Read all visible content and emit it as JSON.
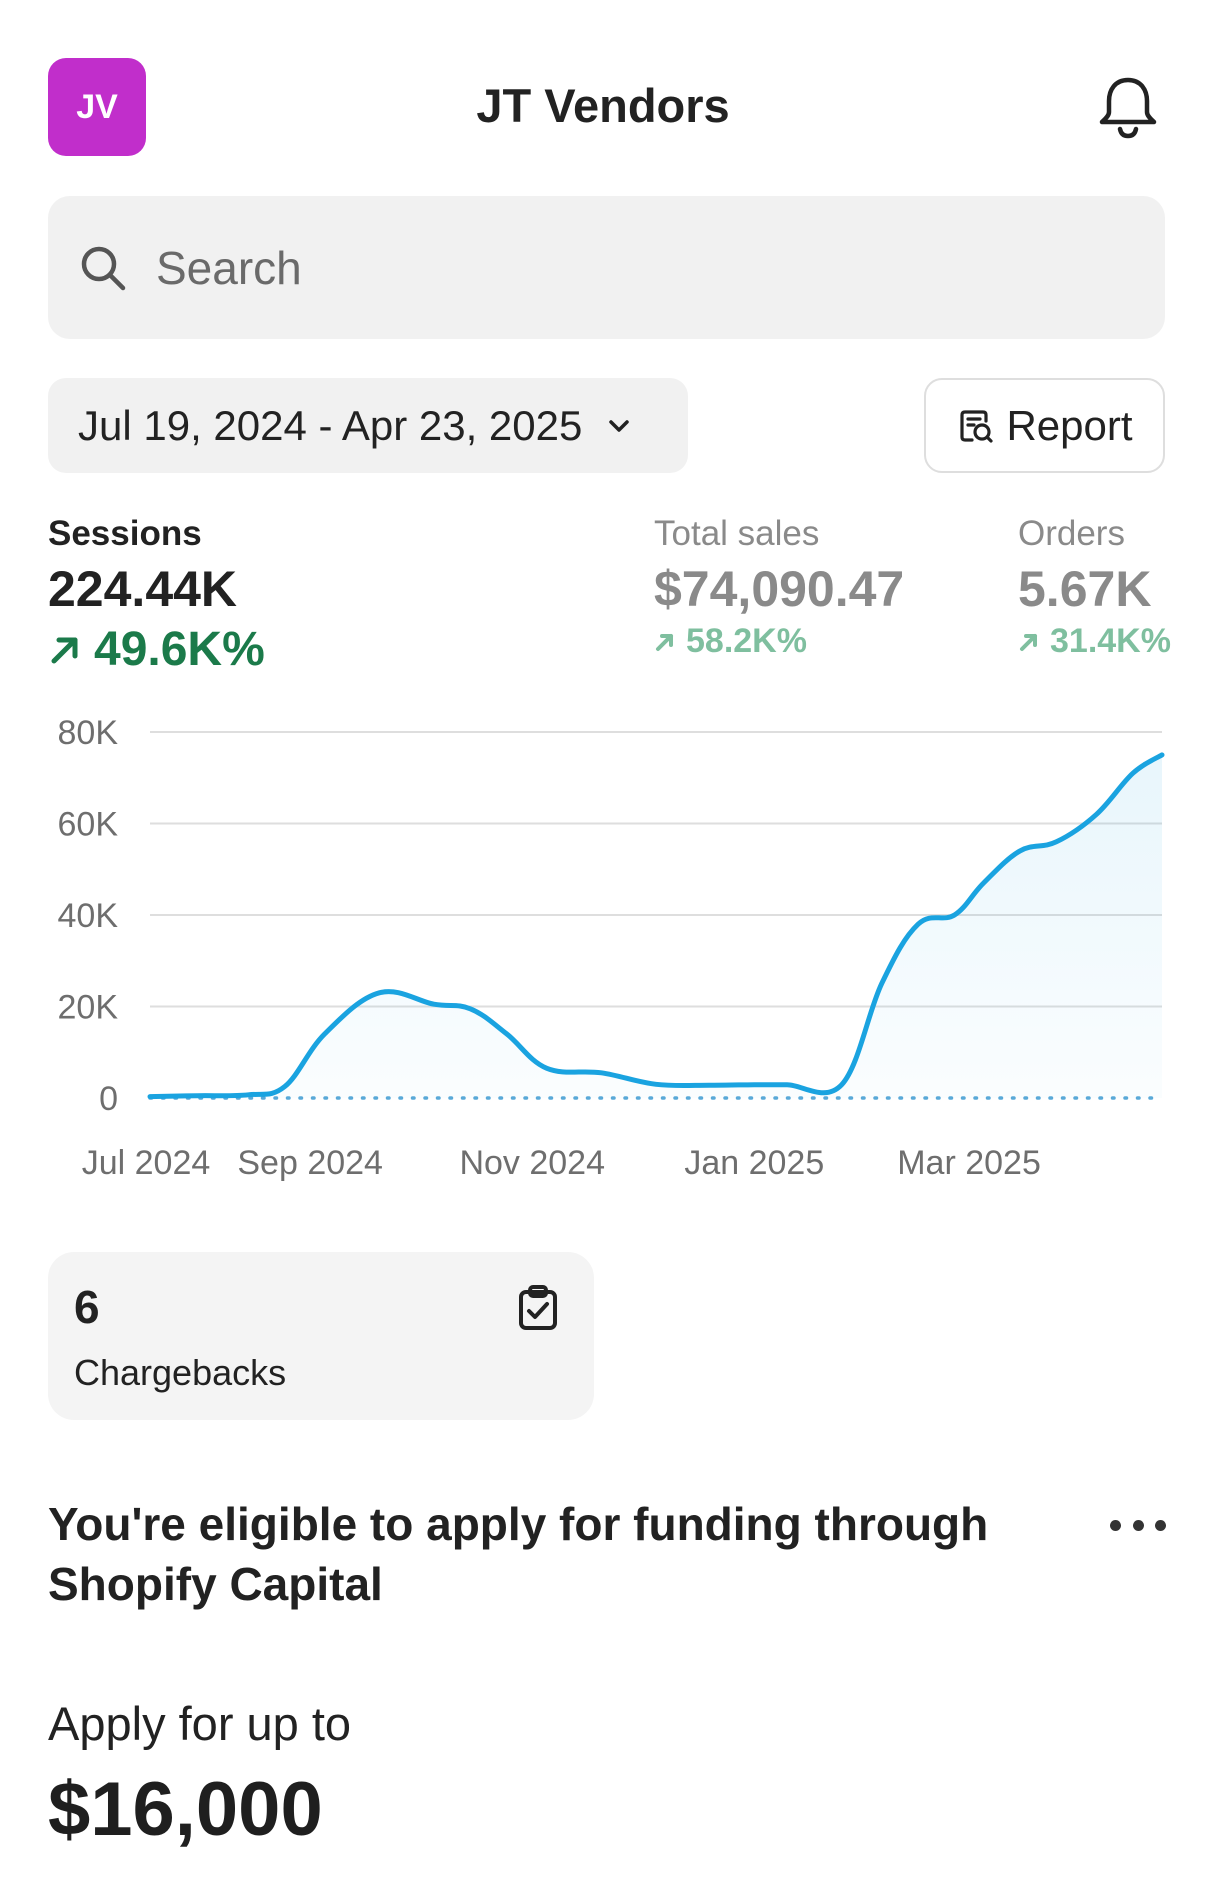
{
  "header": {
    "avatar_initials": "JV",
    "avatar_color": "#c12ecb",
    "store_name": "JT Vendors",
    "notification_icon": "bell-icon"
  },
  "search": {
    "placeholder": "Search",
    "icon": "search-icon"
  },
  "filters": {
    "date_range": "Jul 19, 2024 - Apr 23, 2025",
    "report_label": "Report"
  },
  "metrics": {
    "sessions": {
      "label": "Sessions",
      "value": "224.44K",
      "delta": "49.6K%"
    },
    "total_sales": {
      "label": "Total sales",
      "value": "$74,090.47",
      "delta": "58.2K%"
    },
    "orders": {
      "label": "Orders",
      "value": "5.67K",
      "delta": "31.4K%"
    }
  },
  "chart_data": {
    "type": "area",
    "series": [
      {
        "color": "#1aa3e0",
        "x": [
          "2024-07-19",
          "2024-08-01",
          "2024-08-15",
          "2024-08-25",
          "2024-09-05",
          "2024-09-20",
          "2024-10-05",
          "2024-10-15",
          "2024-10-25",
          "2024-11-05",
          "2024-11-20",
          "2024-12-05",
          "2024-12-20",
          "2025-01-01",
          "2025-01-10",
          "2025-01-25",
          "2025-02-05",
          "2025-02-15",
          "2025-02-25",
          "2025-03-05",
          "2025-03-15",
          "2025-03-25",
          "2025-04-05",
          "2025-04-15",
          "2025-04-23"
        ],
        "values": [
          300,
          500,
          700,
          2500,
          14000,
          23000,
          20500,
          19500,
          14000,
          6500,
          5500,
          3000,
          2800,
          2900,
          2900,
          2900,
          25000,
          38000,
          40000,
          47000,
          54000,
          56000,
          62000,
          71000,
          75000
        ]
      }
    ],
    "baseline": {
      "style": "dotted",
      "value": 0
    },
    "x_ticks": [
      "Jul 2024",
      "Sep 2024",
      "Nov 2024",
      "Jan 2025",
      "Mar 2025"
    ],
    "y_ticks": [
      "0",
      "20K",
      "40K",
      "60K",
      "80K"
    ],
    "ylim": [
      0,
      80000
    ],
    "grid": true
  },
  "chargebacks": {
    "count": "6",
    "label": "Chargebacks",
    "icon": "clipboard-check-icon"
  },
  "capital": {
    "title": "You're eligible to apply for funding through Shopify Capital",
    "apply_label": "Apply for up to",
    "amount": "$16,000"
  },
  "colors": {
    "positive_dark": "#1b7a4a",
    "positive_light": "#7fbf9f",
    "line": "#1aa3e0"
  }
}
